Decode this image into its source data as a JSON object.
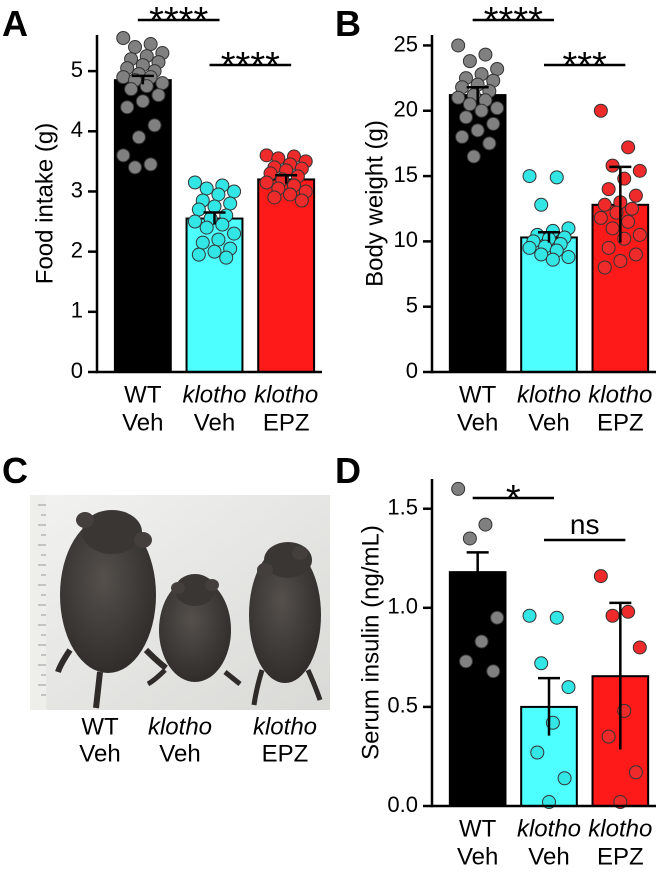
{
  "chart_data": [
    {
      "panel": "A",
      "type": "bar",
      "ylabel": "Food intake (g)",
      "categories": [
        [
          "WT",
          "Veh"
        ],
        [
          "klotho",
          "Veh"
        ],
        [
          "klotho",
          "EPZ"
        ]
      ],
      "category_italic": [
        false,
        true,
        true
      ],
      "values": [
        4.85,
        2.55,
        3.2
      ],
      "errors": [
        0.07,
        0.1,
        0.07
      ],
      "colors": [
        "#000000",
        "#4dffff",
        "#ff1a1a"
      ],
      "point_colors": [
        "#808080",
        "#33e6e6",
        "#ee2a2a"
      ],
      "points": [
        [
          5.55,
          5.45,
          5.4,
          5.3,
          5.25,
          5.2,
          5.15,
          5.1,
          5.05,
          5.0,
          4.95,
          4.9,
          4.9,
          4.85,
          4.8,
          4.75,
          4.7,
          4.6,
          4.5,
          4.4,
          4.1,
          3.9,
          3.6,
          3.45,
          3.4
        ],
        [
          3.15,
          3.1,
          3.05,
          3.0,
          2.95,
          2.85,
          2.8,
          2.75,
          2.7,
          2.6,
          2.55,
          2.5,
          2.45,
          2.4,
          2.3,
          2.2,
          2.15,
          2.05,
          2.0,
          1.95,
          1.9
        ],
        [
          3.6,
          3.58,
          3.55,
          3.5,
          3.45,
          3.4,
          3.38,
          3.35,
          3.3,
          3.25,
          3.2,
          3.15,
          3.1,
          3.05,
          3.0,
          2.95,
          2.9,
          2.85
        ]
      ],
      "ylim": [
        0,
        5.6
      ],
      "yticks": [
        0,
        1,
        2,
        3,
        4,
        5
      ],
      "annotations": [
        {
          "text": "****",
          "from": 0,
          "to": 1
        },
        {
          "text": "****",
          "from": 1,
          "to": 2
        }
      ]
    },
    {
      "panel": "B",
      "type": "bar",
      "ylabel": "Body weight (g)",
      "categories": [
        [
          "WT",
          "Veh"
        ],
        [
          "klotho",
          "Veh"
        ],
        [
          "klotho",
          "EPZ"
        ]
      ],
      "category_italic": [
        false,
        true,
        true
      ],
      "values": [
        21.2,
        10.3,
        12.8
      ],
      "errors": [
        0.6,
        0.4,
        2.9
      ],
      "colors": [
        "#000000",
        "#4dffff",
        "#ff1a1a"
      ],
      "point_colors": [
        "#808080",
        "#33e6e6",
        "#ee2a2a"
      ],
      "points": [
        [
          25.0,
          24.3,
          23.8,
          23.2,
          22.8,
          22.5,
          22.3,
          22.0,
          21.8,
          21.5,
          21.2,
          21.0,
          20.8,
          20.5,
          20.2,
          20.0,
          19.5,
          19.0,
          18.5,
          18.0,
          17.5,
          16.5
        ],
        [
          15.0,
          14.9,
          12.8,
          11.0,
          10.8,
          10.5,
          10.3,
          10.2,
          10.0,
          9.8,
          9.6,
          9.5,
          9.3,
          9.0,
          8.8,
          8.6
        ],
        [
          20.0,
          17.2,
          15.8,
          15.4,
          14.8,
          14.0,
          13.5,
          13.0,
          12.8,
          12.5,
          12.2,
          11.8,
          11.5,
          11.0,
          10.5,
          10.2,
          9.5,
          9.0,
          8.5,
          8.0
        ]
      ],
      "ylim": [
        0,
        25.8
      ],
      "yticks": [
        0,
        5,
        10,
        15,
        20,
        25
      ],
      "annotations": [
        {
          "text": "****",
          "from": 0,
          "to": 1
        },
        {
          "text": "***",
          "from": 1,
          "to": 2
        }
      ]
    },
    {
      "panel": "D",
      "type": "bar",
      "ylabel": "Serum insulin (ng/mL)",
      "categories": [
        [
          "WT",
          "Veh"
        ],
        [
          "klotho",
          "Veh"
        ],
        [
          "klotho",
          "EPZ"
        ]
      ],
      "category_italic": [
        false,
        true,
        true
      ],
      "values": [
        1.18,
        0.5,
        0.655
      ],
      "errors": [
        0.1,
        0.145,
        0.37
      ],
      "colors": [
        "#000000",
        "#4dffff",
        "#ff1a1a"
      ],
      "point_colors": [
        "#808080",
        "#33e6e6",
        "#ee2a2a"
      ],
      "points": [
        [
          1.6,
          1.42,
          1.35,
          0.95,
          0.83,
          0.73,
          0.68
        ],
        [
          0.96,
          0.95,
          0.72,
          0.6,
          0.42,
          0.27,
          0.14,
          0.02
        ],
        [
          1.16,
          0.98,
          0.96,
          0.8,
          0.48,
          0.35,
          0.17,
          0.02
        ]
      ],
      "ylim": [
        0,
        1.65
      ],
      "yticks": [
        {
          "value": 0,
          "label": "0.0"
        },
        0.5,
        {
          "value": 1,
          "label": "1.0"
        },
        1.5
      ],
      "annotations": [
        {
          "text": "*",
          "from": 0,
          "to": 1
        },
        {
          "text": "ns",
          "from": 1,
          "to": 2
        }
      ]
    }
  ],
  "photo": {
    "panel": "C",
    "labels": [
      [
        "WT",
        "Veh"
      ],
      [
        "klotho",
        "Veh"
      ],
      [
        "klotho",
        "EPZ"
      ]
    ],
    "label_italic": [
      false,
      true,
      true
    ]
  }
}
